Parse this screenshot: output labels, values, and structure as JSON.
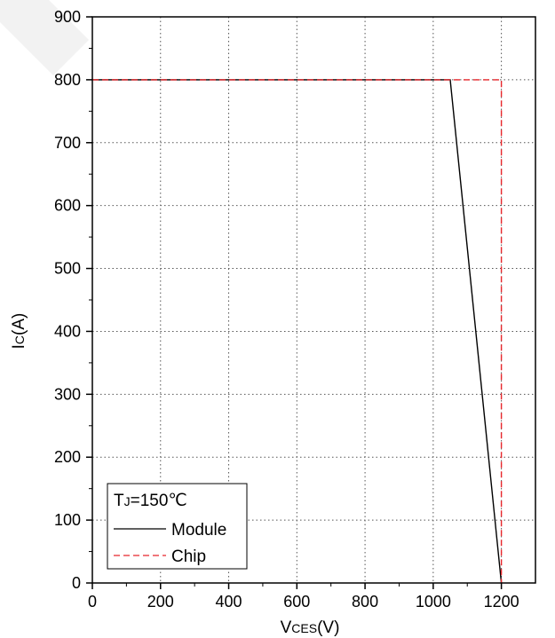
{
  "chart_data": {
    "type": "line",
    "title": "",
    "xlabel": {
      "main": "V",
      "sub": "CES",
      "unit": "(V)"
    },
    "ylabel": {
      "main": "I",
      "sub": "C",
      "unit": "(A)"
    },
    "xlim": [
      0,
      1300
    ],
    "ylim": [
      0,
      900
    ],
    "x_ticks": [
      0,
      200,
      400,
      600,
      800,
      1000,
      1200
    ],
    "y_ticks": [
      0,
      100,
      200,
      300,
      400,
      500,
      600,
      700,
      800,
      900
    ],
    "x_tick_labels": [
      "0",
      "200",
      "400",
      "600",
      "800",
      "1000",
      "1200"
    ],
    "y_tick_labels": [
      "0",
      "100",
      "200",
      "300",
      "400",
      "500",
      "600",
      "700",
      "800",
      "900"
    ],
    "grid": true,
    "legend": {
      "placement": "bottom-left",
      "title": {
        "main": "T",
        "sub": "J",
        "rest": "=150℃"
      }
    },
    "series": [
      {
        "name": "Module",
        "color": "#000000",
        "dash": "solid",
        "points": [
          [
            0,
            800
          ],
          [
            1050,
            800
          ],
          [
            1200,
            0
          ]
        ]
      },
      {
        "name": "Chip",
        "color": "#e8262b",
        "dash": "dashed",
        "points": [
          [
            0,
            800
          ],
          [
            1200,
            800
          ],
          [
            1200,
            0
          ]
        ]
      }
    ]
  }
}
